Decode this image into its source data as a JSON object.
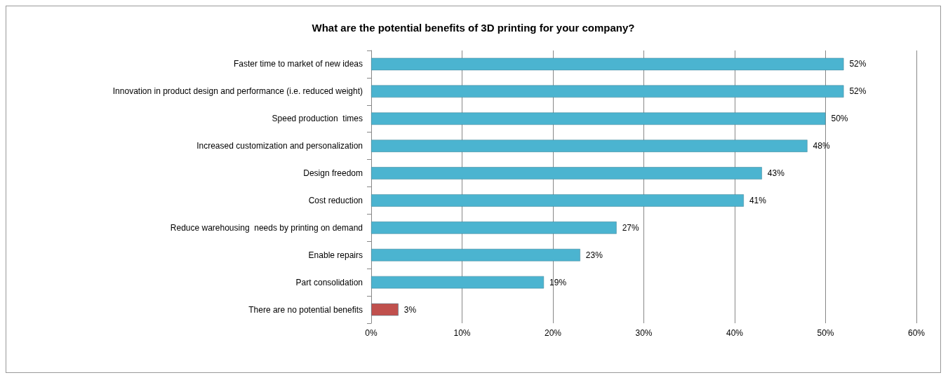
{
  "chart_data": {
    "type": "bar",
    "orientation": "horizontal",
    "title": "What are the potential benefits of 3D printing for your company?",
    "categories": [
      "Faster time to market of new ideas",
      "Innovation in product design and performance (i.e. reduced weight)",
      "Speed production  times",
      "Increased customization and personalization",
      "Design freedom",
      "Cost reduction",
      "Reduce warehousing  needs by printing on demand",
      "Enable repairs",
      "Part consolidation",
      "There are no potential benefits"
    ],
    "values": [
      52,
      52,
      50,
      48,
      43,
      41,
      27,
      23,
      19,
      3
    ],
    "colors": [
      "#4bb4d0",
      "#4bb4d0",
      "#4bb4d0",
      "#4bb4d0",
      "#4bb4d0",
      "#4bb4d0",
      "#4bb4d0",
      "#4bb4d0",
      "#4bb4d0",
      "#c0504d"
    ],
    "value_labels": [
      "52%",
      "52%",
      "50%",
      "48%",
      "43%",
      "41%",
      "27%",
      "23%",
      "19%",
      "3%"
    ],
    "xlim": [
      0,
      60
    ],
    "xticks": [
      {
        "value": 0,
        "label": "0%"
      },
      {
        "value": 10,
        "label": "10%"
      },
      {
        "value": 20,
        "label": "20%"
      },
      {
        "value": 30,
        "label": "30%"
      },
      {
        "value": 40,
        "label": "40%"
      },
      {
        "value": 50,
        "label": "50%"
      },
      {
        "value": 60,
        "label": "60%"
      }
    ],
    "grid": "x"
  }
}
